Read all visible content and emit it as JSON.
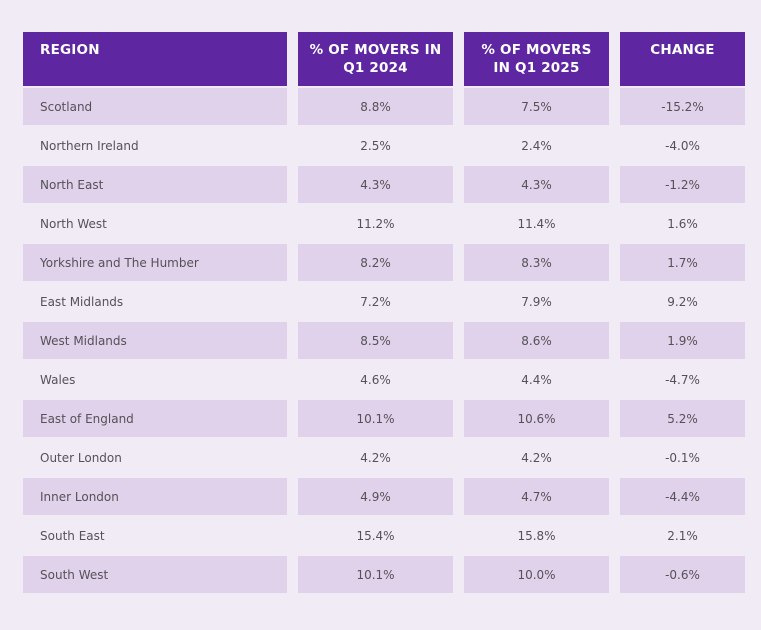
{
  "table": {
    "headers": {
      "region": "REGION",
      "q1_2024": "% OF MOVERS IN Q1 2024",
      "q1_2025": "% OF MOVERS IN Q1 2025",
      "change": "CHANGE"
    },
    "rows": [
      {
        "region": "Scotland",
        "q1_2024": "8.8%",
        "q1_2025": "7.5%",
        "change": "-15.2%"
      },
      {
        "region": "Northern Ireland",
        "q1_2024": "2.5%",
        "q1_2025": "2.4%",
        "change": "-4.0%"
      },
      {
        "region": "North East",
        "q1_2024": "4.3%",
        "q1_2025": "4.3%",
        "change": "-1.2%"
      },
      {
        "region": "North West",
        "q1_2024": "11.2%",
        "q1_2025": "11.4%",
        "change": "1.6%"
      },
      {
        "region": "Yorkshire and The Humber",
        "q1_2024": "8.2%",
        "q1_2025": "8.3%",
        "change": "1.7%"
      },
      {
        "region": "East Midlands",
        "q1_2024": "7.2%",
        "q1_2025": "7.9%",
        "change": "9.2%"
      },
      {
        "region": "West Midlands",
        "q1_2024": "8.5%",
        "q1_2025": "8.6%",
        "change": "1.9%"
      },
      {
        "region": "Wales",
        "q1_2024": "4.6%",
        "q1_2025": "4.4%",
        "change": "-4.7%"
      },
      {
        "region": "East of England",
        "q1_2024": "10.1%",
        "q1_2025": "10.6%",
        "change": "5.2%"
      },
      {
        "region": "Outer London",
        "q1_2024": "4.2%",
        "q1_2025": "4.2%",
        "change": "-0.1%"
      },
      {
        "region": "Inner London",
        "q1_2024": "4.9%",
        "q1_2025": "4.7%",
        "change": "-4.4%"
      },
      {
        "region": "South East",
        "q1_2024": "15.4%",
        "q1_2025": "15.8%",
        "change": "2.1%"
      },
      {
        "region": "South West",
        "q1_2024": "10.1%",
        "q1_2025": "10.0%",
        "change": "-0.6%"
      }
    ]
  },
  "colors": {
    "header_bg": "#5e26a0",
    "shaded_row": "#e0d2ea",
    "page_bg": "#f1ebf6"
  }
}
